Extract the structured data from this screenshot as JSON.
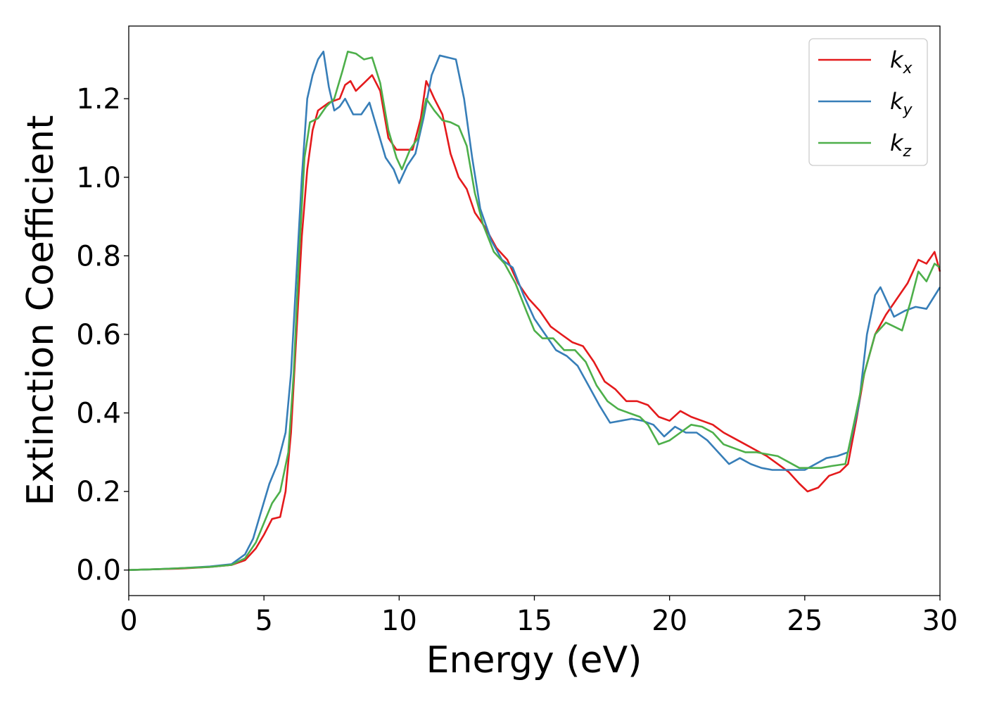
{
  "chart_data": {
    "type": "line",
    "xlabel": "Energy (eV)",
    "ylabel": "Extinction Coefficient",
    "xlim": [
      0,
      30
    ],
    "ylim": [
      -0.065,
      1.385
    ],
    "xticks": [
      0,
      5,
      10,
      15,
      20,
      25,
      30
    ],
    "yticks": [
      0.0,
      0.2,
      0.4,
      0.6,
      0.8,
      1.0,
      1.2
    ],
    "grid": false,
    "legend_position": "top-right",
    "series": [
      {
        "name": "k_x",
        "legend_base": "k",
        "legend_sub": "x",
        "color": "#e41a1c",
        "points": [
          [
            0,
            0
          ],
          [
            1,
            0.002
          ],
          [
            2,
            0.004
          ],
          [
            3,
            0.008
          ],
          [
            3.8,
            0.013
          ],
          [
            4.3,
            0.025
          ],
          [
            4.7,
            0.055
          ],
          [
            5.0,
            0.09
          ],
          [
            5.3,
            0.13
          ],
          [
            5.6,
            0.135
          ],
          [
            5.8,
            0.2
          ],
          [
            6.0,
            0.35
          ],
          [
            6.2,
            0.6
          ],
          [
            6.4,
            0.85
          ],
          [
            6.6,
            1.02
          ],
          [
            6.8,
            1.12
          ],
          [
            7.0,
            1.17
          ],
          [
            7.4,
            1.19
          ],
          [
            7.8,
            1.2
          ],
          [
            8.0,
            1.235
          ],
          [
            8.2,
            1.245
          ],
          [
            8.4,
            1.22
          ],
          [
            8.7,
            1.24
          ],
          [
            9.0,
            1.26
          ],
          [
            9.3,
            1.22
          ],
          [
            9.6,
            1.1
          ],
          [
            9.9,
            1.07
          ],
          [
            10.2,
            1.07
          ],
          [
            10.5,
            1.07
          ],
          [
            10.8,
            1.15
          ],
          [
            11.0,
            1.245
          ],
          [
            11.3,
            1.2
          ],
          [
            11.6,
            1.16
          ],
          [
            11.9,
            1.06
          ],
          [
            12.2,
            1.0
          ],
          [
            12.5,
            0.97
          ],
          [
            12.8,
            0.91
          ],
          [
            13.2,
            0.87
          ],
          [
            13.6,
            0.82
          ],
          [
            14.0,
            0.79
          ],
          [
            14.4,
            0.73
          ],
          [
            14.8,
            0.69
          ],
          [
            15.2,
            0.66
          ],
          [
            15.6,
            0.62
          ],
          [
            16.0,
            0.6
          ],
          [
            16.4,
            0.58
          ],
          [
            16.8,
            0.57
          ],
          [
            17.2,
            0.53
          ],
          [
            17.6,
            0.48
          ],
          [
            18.0,
            0.46
          ],
          [
            18.4,
            0.43
          ],
          [
            18.8,
            0.43
          ],
          [
            19.2,
            0.42
          ],
          [
            19.6,
            0.39
          ],
          [
            20.0,
            0.38
          ],
          [
            20.4,
            0.405
          ],
          [
            20.8,
            0.39
          ],
          [
            21.2,
            0.38
          ],
          [
            21.6,
            0.37
          ],
          [
            22.0,
            0.35
          ],
          [
            22.4,
            0.335
          ],
          [
            22.8,
            0.32
          ],
          [
            23.2,
            0.305
          ],
          [
            23.6,
            0.29
          ],
          [
            24.0,
            0.27
          ],
          [
            24.4,
            0.25
          ],
          [
            24.8,
            0.22
          ],
          [
            25.1,
            0.2
          ],
          [
            25.5,
            0.21
          ],
          [
            25.9,
            0.24
          ],
          [
            26.3,
            0.25
          ],
          [
            26.6,
            0.27
          ],
          [
            26.9,
            0.38
          ],
          [
            27.2,
            0.5
          ],
          [
            27.6,
            0.6
          ],
          [
            28.0,
            0.65
          ],
          [
            28.4,
            0.69
          ],
          [
            28.8,
            0.73
          ],
          [
            29.2,
            0.79
          ],
          [
            29.5,
            0.78
          ],
          [
            29.8,
            0.81
          ],
          [
            30.0,
            0.76
          ]
        ]
      },
      {
        "name": "k_y",
        "legend_base": "k",
        "legend_sub": "y",
        "color": "#377eb8",
        "points": [
          [
            0,
            0
          ],
          [
            1,
            0.002
          ],
          [
            2,
            0.005
          ],
          [
            3,
            0.009
          ],
          [
            3.8,
            0.015
          ],
          [
            4.3,
            0.04
          ],
          [
            4.6,
            0.08
          ],
          [
            4.9,
            0.15
          ],
          [
            5.2,
            0.22
          ],
          [
            5.5,
            0.27
          ],
          [
            5.8,
            0.35
          ],
          [
            6.0,
            0.5
          ],
          [
            6.2,
            0.75
          ],
          [
            6.4,
            1.0
          ],
          [
            6.6,
            1.2
          ],
          [
            6.8,
            1.26
          ],
          [
            7.0,
            1.3
          ],
          [
            7.2,
            1.32
          ],
          [
            7.4,
            1.23
          ],
          [
            7.6,
            1.17
          ],
          [
            7.8,
            1.18
          ],
          [
            8.0,
            1.2
          ],
          [
            8.3,
            1.16
          ],
          [
            8.6,
            1.16
          ],
          [
            8.9,
            1.19
          ],
          [
            9.2,
            1.12
          ],
          [
            9.5,
            1.05
          ],
          [
            9.8,
            1.02
          ],
          [
            10.0,
            0.985
          ],
          [
            10.3,
            1.03
          ],
          [
            10.6,
            1.06
          ],
          [
            10.9,
            1.15
          ],
          [
            11.2,
            1.26
          ],
          [
            11.5,
            1.31
          ],
          [
            11.8,
            1.305
          ],
          [
            12.1,
            1.3
          ],
          [
            12.4,
            1.2
          ],
          [
            12.7,
            1.05
          ],
          [
            13.0,
            0.92
          ],
          [
            13.4,
            0.84
          ],
          [
            13.8,
            0.79
          ],
          [
            14.2,
            0.77
          ],
          [
            14.6,
            0.7
          ],
          [
            15.0,
            0.64
          ],
          [
            15.4,
            0.6
          ],
          [
            15.8,
            0.56
          ],
          [
            16.2,
            0.545
          ],
          [
            16.6,
            0.52
          ],
          [
            17.0,
            0.47
          ],
          [
            17.4,
            0.42
          ],
          [
            17.8,
            0.375
          ],
          [
            18.2,
            0.38
          ],
          [
            18.6,
            0.385
          ],
          [
            19.0,
            0.38
          ],
          [
            19.4,
            0.37
          ],
          [
            19.8,
            0.34
          ],
          [
            20.2,
            0.365
          ],
          [
            20.6,
            0.35
          ],
          [
            21.0,
            0.35
          ],
          [
            21.4,
            0.33
          ],
          [
            21.8,
            0.3
          ],
          [
            22.2,
            0.27
          ],
          [
            22.6,
            0.285
          ],
          [
            23.0,
            0.27
          ],
          [
            23.4,
            0.26
          ],
          [
            23.8,
            0.255
          ],
          [
            24.2,
            0.255
          ],
          [
            24.6,
            0.255
          ],
          [
            25.0,
            0.255
          ],
          [
            25.4,
            0.27
          ],
          [
            25.8,
            0.285
          ],
          [
            26.2,
            0.29
          ],
          [
            26.6,
            0.3
          ],
          [
            27.0,
            0.42
          ],
          [
            27.3,
            0.6
          ],
          [
            27.6,
            0.7
          ],
          [
            27.8,
            0.72
          ],
          [
            28.0,
            0.69
          ],
          [
            28.3,
            0.645
          ],
          [
            28.7,
            0.66
          ],
          [
            29.1,
            0.67
          ],
          [
            29.5,
            0.665
          ],
          [
            30.0,
            0.72
          ]
        ]
      },
      {
        "name": "k_z",
        "legend_base": "k",
        "legend_sub": "z",
        "color": "#4daf4a",
        "points": [
          [
            0,
            0
          ],
          [
            1,
            0.002
          ],
          [
            2,
            0.005
          ],
          [
            3,
            0.008
          ],
          [
            3.8,
            0.013
          ],
          [
            4.3,
            0.03
          ],
          [
            4.7,
            0.07
          ],
          [
            5.0,
            0.12
          ],
          [
            5.3,
            0.17
          ],
          [
            5.6,
            0.2
          ],
          [
            5.9,
            0.3
          ],
          [
            6.1,
            0.5
          ],
          [
            6.3,
            0.8
          ],
          [
            6.5,
            1.05
          ],
          [
            6.7,
            1.14
          ],
          [
            7.0,
            1.15
          ],
          [
            7.3,
            1.18
          ],
          [
            7.6,
            1.2
          ],
          [
            7.9,
            1.27
          ],
          [
            8.1,
            1.32
          ],
          [
            8.4,
            1.315
          ],
          [
            8.7,
            1.3
          ],
          [
            9.0,
            1.305
          ],
          [
            9.3,
            1.24
          ],
          [
            9.6,
            1.12
          ],
          [
            9.9,
            1.05
          ],
          [
            10.1,
            1.02
          ],
          [
            10.4,
            1.07
          ],
          [
            10.7,
            1.1
          ],
          [
            11.0,
            1.2
          ],
          [
            11.3,
            1.17
          ],
          [
            11.6,
            1.145
          ],
          [
            11.9,
            1.14
          ],
          [
            12.2,
            1.13
          ],
          [
            12.5,
            1.08
          ],
          [
            12.8,
            0.96
          ],
          [
            13.1,
            0.88
          ],
          [
            13.5,
            0.81
          ],
          [
            13.9,
            0.78
          ],
          [
            14.3,
            0.73
          ],
          [
            14.7,
            0.66
          ],
          [
            15.0,
            0.61
          ],
          [
            15.3,
            0.59
          ],
          [
            15.7,
            0.59
          ],
          [
            16.1,
            0.56
          ],
          [
            16.5,
            0.56
          ],
          [
            16.9,
            0.53
          ],
          [
            17.3,
            0.47
          ],
          [
            17.7,
            0.43
          ],
          [
            18.1,
            0.41
          ],
          [
            18.5,
            0.4
          ],
          [
            18.9,
            0.39
          ],
          [
            19.2,
            0.37
          ],
          [
            19.6,
            0.32
          ],
          [
            20.0,
            0.33
          ],
          [
            20.4,
            0.35
          ],
          [
            20.8,
            0.37
          ],
          [
            21.2,
            0.365
          ],
          [
            21.6,
            0.35
          ],
          [
            22.0,
            0.32
          ],
          [
            22.4,
            0.31
          ],
          [
            22.8,
            0.3
          ],
          [
            23.2,
            0.3
          ],
          [
            23.6,
            0.295
          ],
          [
            24.0,
            0.29
          ],
          [
            24.4,
            0.275
          ],
          [
            24.8,
            0.26
          ],
          [
            25.2,
            0.26
          ],
          [
            25.6,
            0.26
          ],
          [
            26.0,
            0.265
          ],
          [
            26.5,
            0.27
          ],
          [
            26.9,
            0.4
          ],
          [
            27.2,
            0.5
          ],
          [
            27.6,
            0.6
          ],
          [
            28.0,
            0.63
          ],
          [
            28.3,
            0.62
          ],
          [
            28.6,
            0.61
          ],
          [
            28.9,
            0.68
          ],
          [
            29.2,
            0.76
          ],
          [
            29.5,
            0.735
          ],
          [
            29.8,
            0.78
          ],
          [
            30.0,
            0.77
          ]
        ]
      }
    ]
  }
}
